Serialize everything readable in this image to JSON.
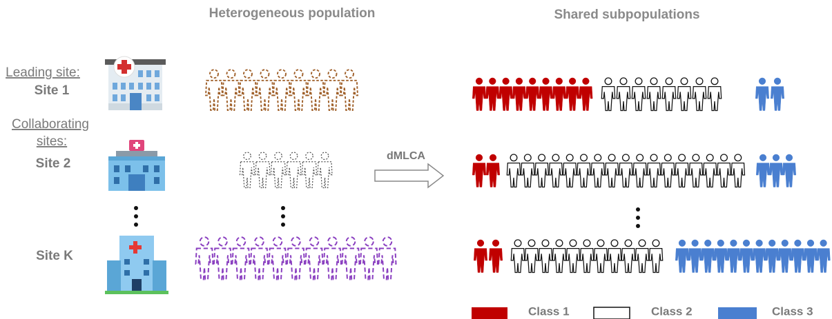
{
  "headers": {
    "heterogeneous": "Heterogeneous population",
    "shared": "Shared subpopulations"
  },
  "sites": [
    {
      "label_lines": [
        "Leading site:"
      ],
      "name": "Site 1"
    },
    {
      "label_lines": [
        "Collaborating",
        "sites:"
      ],
      "name": "Site 2"
    },
    {
      "name": "Site K"
    }
  ],
  "method": "dMLCA",
  "legend": [
    "Class 1",
    "Class 2",
    "Class 3"
  ]
}
